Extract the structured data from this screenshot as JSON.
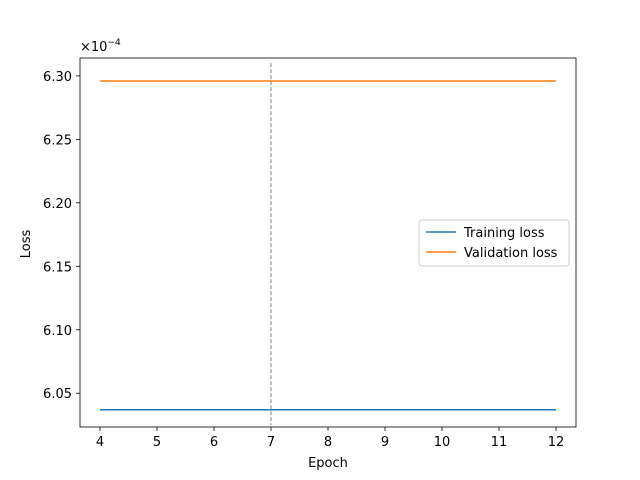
{
  "chart_data": {
    "type": "line",
    "xlabel": "Epoch",
    "ylabel": "Loss",
    "y_scale_note": "×10",
    "y_scale_exponent": "−4",
    "xlim": [
      3.65,
      12.35
    ],
    "ylim": [
      6.0234,
      6.3141
    ],
    "xticks": [
      4,
      5,
      6,
      7,
      8,
      9,
      10,
      11,
      12
    ],
    "yticks": [
      6.05,
      6.1,
      6.15,
      6.2,
      6.25,
      6.3
    ],
    "ytick_labels": [
      "6.05",
      "6.10",
      "6.15",
      "6.20",
      "6.25",
      "6.30"
    ],
    "grid": false,
    "legend_position": "center-right",
    "series": [
      {
        "name": "Training loss",
        "color": "#1f77b4",
        "x": [
          4,
          5,
          6,
          7,
          8,
          9,
          10,
          11,
          12
        ],
        "y": [
          6.037,
          6.037,
          6.037,
          6.037,
          6.037,
          6.037,
          6.037,
          6.037,
          6.037
        ]
      },
      {
        "name": "Validation loss",
        "color": "#ff7f0e",
        "x": [
          4,
          5,
          6,
          7,
          8,
          9,
          10,
          11,
          12
        ],
        "y": [
          6.296,
          6.296,
          6.296,
          6.296,
          6.296,
          6.296,
          6.296,
          6.296,
          6.296
        ]
      }
    ],
    "vline": {
      "x": 7,
      "color": "#808080",
      "y_from": 6.025,
      "y_to": 6.31
    }
  }
}
